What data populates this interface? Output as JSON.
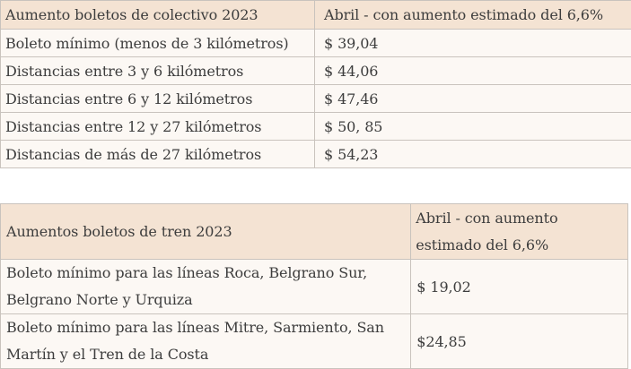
{
  "bus_table": {
    "header": [
      "Aumento boletos de colectivo 2023",
      "Abril - con aumento estimado del 6,6%"
    ],
    "rows": [
      [
        "Boleto mínimo (menos de 3 kilómetros)",
        "$ 39,04"
      ],
      [
        "Distancias entre 3 y 6 kilómetros",
        "$ 44,06"
      ],
      [
        "Distancias entre 6 y 12 kilómetros",
        "$ 47,46"
      ],
      [
        "Distancias entre 12 y 27 kilómetros",
        "$ 50, 85"
      ],
      [
        "Distancias de más de 27 kilómetros",
        "$ 54,23"
      ]
    ]
  },
  "train_table": {
    "header": [
      "Aumentos boletos de tren 2023",
      "Abril - con aumento estimado del 6,6%"
    ],
    "rows": [
      [
        "Boleto mínimo para las líneas Roca, Belgrano Sur, Belgrano Norte y Urquiza",
        "$ 19,02"
      ],
      [
        "Boleto mínimo para las líneas Mitre, Sarmiento, San Martín y el Tren de la Costa",
        "$24,85"
      ]
    ]
  },
  "colors": {
    "header_bg": "#f4e3d3",
    "body_bg": "#fcf8f4",
    "border": "#c9c3bd",
    "text": "#3d3d3d"
  }
}
